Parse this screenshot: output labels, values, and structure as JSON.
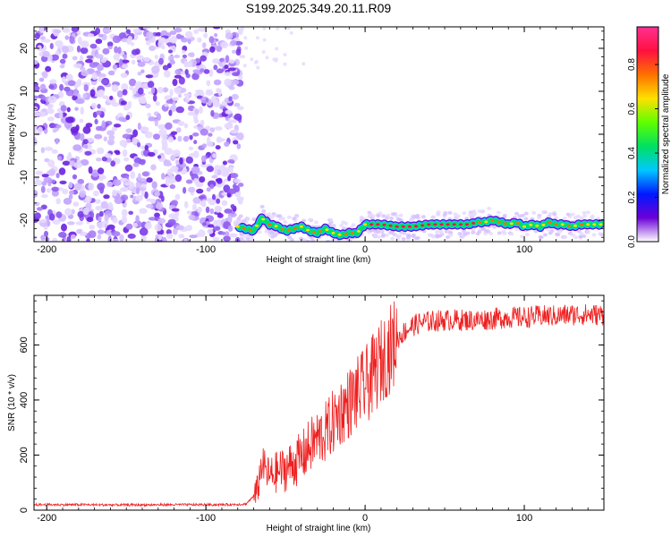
{
  "title": "S199.2025.349.20.11.R09",
  "chart_data": [
    {
      "type": "heatmap",
      "name": "spectrogram",
      "xlabel": "Height of straight line (km)",
      "ylabel": "Frequency (Hz)",
      "xlim": [
        -208,
        150
      ],
      "ylim": [
        -25,
        25
      ],
      "xticks": [
        -200,
        -100,
        0,
        100
      ],
      "xtick_labels": [
        "-200",
        "-100",
        "0",
        "100"
      ],
      "yticks": [
        -20,
        -10,
        0,
        10,
        20
      ],
      "ytick_labels": [
        "-20",
        "-10",
        "0",
        "10",
        "20"
      ],
      "noise_region_x": [
        -208,
        -78
      ],
      "signal_region_x": [
        -80,
        150
      ],
      "tone_track": {
        "x": [
          -80,
          -70,
          -65,
          -60,
          -55,
          -50,
          -45,
          -40,
          -35,
          -30,
          -25,
          -20,
          -15,
          -10,
          -5,
          0,
          10,
          20,
          30,
          40,
          50,
          60,
          65,
          70,
          75,
          80,
          85,
          90,
          95,
          100,
          105,
          110,
          115,
          120,
          125,
          130,
          135,
          140,
          145,
          150
        ],
        "y": [
          -21.5,
          -22.5,
          -19.5,
          -21.0,
          -21.5,
          -22.5,
          -22.0,
          -21.5,
          -22.5,
          -23.0,
          -22.0,
          -23.0,
          -23.5,
          -23.0,
          -23.0,
          -21.0,
          -21.0,
          -21.5,
          -21.5,
          -21.0,
          -21.0,
          -21.0,
          -21.0,
          -20.5,
          -20.5,
          -20.0,
          -20.5,
          -21.0,
          -20.5,
          -21.5,
          -21.0,
          -21.5,
          -20.5,
          -21.0,
          -21.0,
          -21.5,
          -21.0,
          -21.0,
          -21.0,
          -21.0
        ]
      },
      "colorbar": {
        "label": "Normalized spectral amplitude",
        "range": [
          0,
          0.97
        ],
        "ticks": [
          0.0,
          0.2,
          0.4,
          0.6,
          0.8
        ],
        "tick_labels": [
          "0.0",
          "0.2",
          "0.4",
          "0.6",
          "0.8"
        ],
        "colormap": [
          "#ffffff",
          "#6b00d8",
          "#0018ff",
          "#00c8ff",
          "#00e060",
          "#60ff00",
          "#ffe000",
          "#ff7000",
          "#ff1040",
          "#ff3090"
        ]
      }
    },
    {
      "type": "line",
      "name": "snr",
      "xlabel": "Height of straight line (km)",
      "ylabel": "SNR (10 * v/v)",
      "xlim": [
        -208,
        150
      ],
      "ylim": [
        0,
        780
      ],
      "xticks": [
        -200,
        -100,
        0,
        100
      ],
      "xtick_labels": [
        "-200",
        "-100",
        "0",
        "100"
      ],
      "yticks": [
        0,
        200,
        400,
        600
      ],
      "ytick_labels": [
        "0",
        "200",
        "400",
        "600"
      ],
      "color": "#ee2020",
      "series": [
        {
          "name": "SNR",
          "x": [
            -208,
            -180,
            -150,
            -120,
            -90,
            -75,
            -68,
            -65,
            -60,
            -55,
            -50,
            -45,
            -40,
            -35,
            -30,
            -25,
            -20,
            -15,
            -10,
            -5,
            0,
            5,
            10,
            15,
            20,
            25,
            30,
            35,
            40,
            50,
            60,
            70,
            80,
            90,
            100,
            110,
            120,
            130,
            140,
            150
          ],
          "values": [
            18,
            18,
            17,
            18,
            18,
            20,
            60,
            170,
            120,
            140,
            150,
            170,
            190,
            230,
            260,
            280,
            320,
            360,
            390,
            420,
            450,
            490,
            540,
            580,
            620,
            650,
            670,
            680,
            685,
            690,
            690,
            690,
            695,
            700,
            700,
            705,
            705,
            710,
            710,
            710
          ]
        }
      ]
    }
  ]
}
